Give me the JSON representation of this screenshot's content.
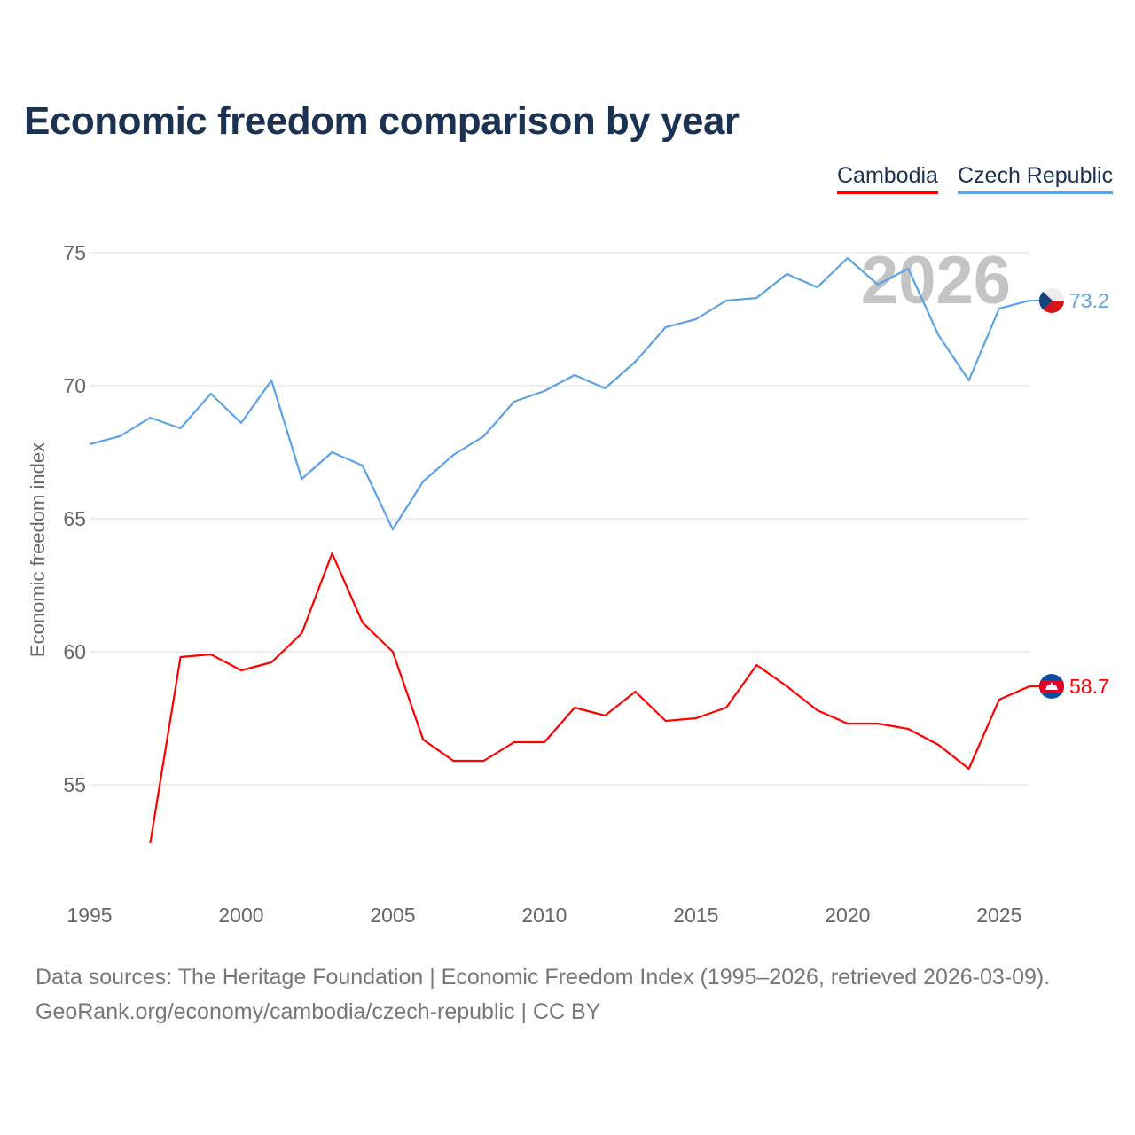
{
  "chart_data": {
    "type": "line",
    "title": "Economic freedom comparison by year",
    "xlabel": "",
    "ylabel": "Economic freedom index",
    "xlim": [
      1995,
      2026
    ],
    "ylim": [
      51,
      77
    ],
    "xticks": [
      1995,
      2000,
      2005,
      2010,
      2015,
      2020,
      2025
    ],
    "yticks": [
      55,
      60,
      65,
      70,
      75
    ],
    "grid": true,
    "legend_position": "top-right",
    "year_watermark": "2026",
    "series": [
      {
        "name": "Cambodia",
        "color": "#ff0000",
        "end_label": "58.7",
        "x": [
          1997,
          1998,
          1999,
          2000,
          2001,
          2002,
          2003,
          2004,
          2005,
          2006,
          2007,
          2008,
          2009,
          2010,
          2011,
          2012,
          2013,
          2014,
          2015,
          2016,
          2017,
          2018,
          2019,
          2020,
          2021,
          2022,
          2023,
          2024,
          2025,
          2026
        ],
        "values": [
          52.8,
          59.8,
          59.9,
          59.3,
          59.6,
          60.7,
          63.7,
          61.1,
          60.0,
          56.7,
          55.9,
          55.9,
          56.6,
          56.6,
          57.9,
          57.6,
          58.5,
          57.4,
          57.5,
          57.9,
          59.5,
          58.7,
          57.8,
          57.3,
          57.3,
          57.1,
          56.5,
          55.6,
          58.2,
          58.7
        ]
      },
      {
        "name": "Czech Republic",
        "color": "#5ca2e6",
        "end_label": "73.2",
        "x": [
          1995,
          1996,
          1997,
          1998,
          1999,
          2000,
          2001,
          2002,
          2003,
          2004,
          2005,
          2006,
          2007,
          2008,
          2009,
          2010,
          2011,
          2012,
          2013,
          2014,
          2015,
          2016,
          2017,
          2018,
          2019,
          2020,
          2021,
          2022,
          2023,
          2024,
          2025,
          2026
        ],
        "values": [
          67.8,
          68.1,
          68.8,
          68.4,
          69.7,
          68.6,
          70.2,
          66.5,
          67.5,
          67.0,
          64.6,
          66.4,
          67.4,
          68.1,
          69.4,
          69.8,
          70.4,
          69.9,
          70.9,
          72.2,
          72.5,
          73.2,
          73.3,
          74.2,
          73.7,
          74.8,
          73.8,
          74.4,
          71.9,
          70.2,
          72.9,
          73.2
        ]
      }
    ]
  },
  "footer": {
    "line1": "Data sources: The Heritage Foundation | Economic Freedom Index (1995–2026, retrieved 2026-03-09).",
    "line2": "GeoRank.org/economy/cambodia/czech-republic | CC BY"
  }
}
